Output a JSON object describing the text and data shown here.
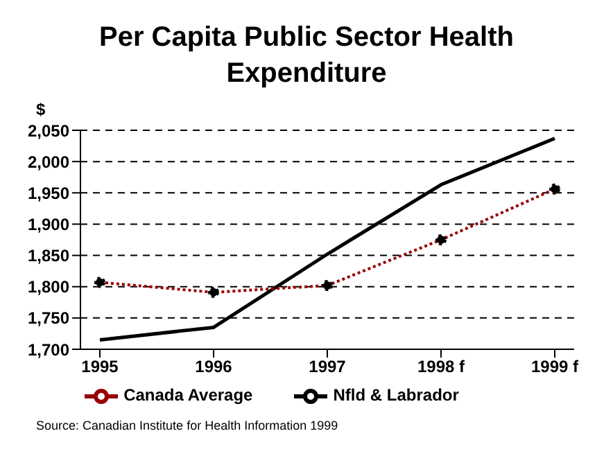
{
  "chart_data": {
    "type": "line",
    "title": "Per Capita Public Sector Health Expenditure",
    "ylabel": "$",
    "categories": [
      "1995",
      "1996",
      "1997",
      "1998 f",
      "1999 f"
    ],
    "series": [
      {
        "name": "Nfld & Labrador",
        "color": "#000000",
        "values": [
          1715,
          1735,
          1852,
          1963,
          2037
        ],
        "line_style": "solid",
        "marker": "none"
      },
      {
        "name": "Canada Average",
        "color": "#990000",
        "values": [
          1807,
          1791,
          1802,
          1875,
          1956
        ],
        "line_style": "dotted",
        "marker": "circle"
      }
    ],
    "ylim": [
      1700,
      2050
    ],
    "yticks": [
      {
        "value": 1700,
        "label": "1,700"
      },
      {
        "value": 1750,
        "label": "1,750"
      },
      {
        "value": 1800,
        "label": "1,800"
      },
      {
        "value": 1850,
        "label": "1,850"
      },
      {
        "value": 1900,
        "label": "1,900"
      },
      {
        "value": 1950,
        "label": "1,950"
      },
      {
        "value": 2000,
        "label": "2,000"
      },
      {
        "value": 2050,
        "label": "2,050"
      }
    ],
    "grid": "y",
    "legend": "bottom",
    "annotations": [
      "Source: Canadian Institute for Health Information 1999"
    ]
  }
}
